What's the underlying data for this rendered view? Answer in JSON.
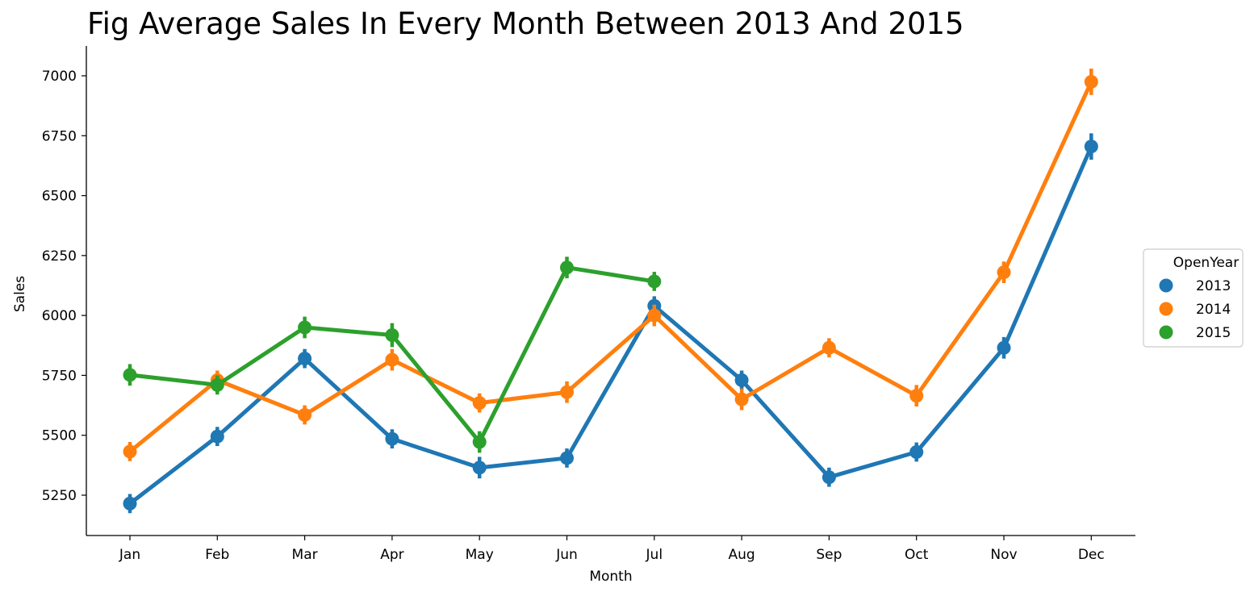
{
  "chart_data": {
    "type": "line",
    "title": "Fig Average Sales In Every Month Between 2013 And 2015",
    "xlabel": "Month",
    "ylabel": "Sales",
    "categories": [
      "Jan",
      "Feb",
      "Mar",
      "Apr",
      "May",
      "Jun",
      "Jul",
      "Aug",
      "Sep",
      "Oct",
      "Nov",
      "Dec"
    ],
    "yticks": [
      5250,
      5500,
      5750,
      6000,
      6250,
      6500,
      6750,
      7000
    ],
    "ylim": [
      5080,
      7120
    ],
    "legend": {
      "title": "OpenYear",
      "position": "center-right"
    },
    "series": [
      {
        "name": "2013",
        "color": "#1f77b4",
        "values": [
          5215,
          5495,
          5820,
          5485,
          5365,
          5405,
          6040,
          5730,
          5325,
          5430,
          5865,
          6705
        ],
        "err": [
          40,
          40,
          40,
          40,
          45,
          40,
          40,
          40,
          40,
          40,
          45,
          55
        ]
      },
      {
        "name": "2014",
        "color": "#ff7f0e",
        "values": [
          5432,
          5730,
          5585,
          5815,
          5635,
          5680,
          6000,
          5650,
          5865,
          5665,
          6180,
          6975
        ],
        "err": [
          40,
          40,
          40,
          45,
          40,
          45,
          45,
          45,
          40,
          45,
          45,
          55
        ]
      },
      {
        "name": "2015",
        "color": "#2ca02c",
        "values": [
          5752,
          5710,
          5950,
          5918,
          5472,
          6200,
          6142,
          null,
          null,
          null,
          null,
          null
        ],
        "err": [
          45,
          40,
          45,
          50,
          45,
          45,
          40,
          null,
          null,
          null,
          null,
          null
        ]
      }
    ]
  }
}
